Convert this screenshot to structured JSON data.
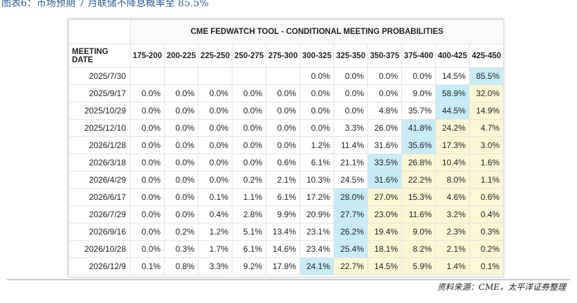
{
  "caption": "图表6：市场预期 7 月联储不降息概率至 85.5%",
  "source": "资料来源：CME，太平洋证券整理",
  "colors": {
    "highlight_max": "#c7ecf6",
    "highlight_above": "#fbf7d5"
  },
  "chart_data": {
    "type": "table",
    "title": "CME FEDWATCH TOOL - CONDITIONAL MEETING PROBABILITIES",
    "row_header": "MEETING DATE",
    "columns": [
      "175-200",
      "200-225",
      "225-250",
      "250-275",
      "275-300",
      "300-325",
      "325-350",
      "350-375",
      "375-400",
      "400-425",
      "425-450"
    ],
    "rows": [
      {
        "date": "2025/7/30",
        "values": [
          "",
          "",
          "",
          "",
          "",
          "0.0%",
          "0.0%",
          "0.0%",
          "0.0%",
          "14.5%",
          "85.5%"
        ]
      },
      {
        "date": "2025/9/17",
        "values": [
          "0.0%",
          "0.0%",
          "0.0%",
          "0.0%",
          "0.0%",
          "0.0%",
          "0.0%",
          "0.0%",
          "9.0%",
          "58.9%",
          "32.0%"
        ]
      },
      {
        "date": "2025/10/29",
        "values": [
          "0.0%",
          "0.0%",
          "0.0%",
          "0.0%",
          "0.0%",
          "0.0%",
          "0.0%",
          "4.8%",
          "35.7%",
          "44.5%",
          "14.9%"
        ]
      },
      {
        "date": "2025/12/10",
        "values": [
          "0.0%",
          "0.0%",
          "0.0%",
          "0.0%",
          "0.0%",
          "0.0%",
          "3.3%",
          "26.0%",
          "41.8%",
          "24.2%",
          "4.7%"
        ]
      },
      {
        "date": "2026/1/28",
        "values": [
          "0.0%",
          "0.0%",
          "0.0%",
          "0.0%",
          "0.0%",
          "1.2%",
          "11.4%",
          "31.6%",
          "35.6%",
          "17.3%",
          "3.0%"
        ]
      },
      {
        "date": "2026/3/18",
        "values": [
          "0.0%",
          "0.0%",
          "0.0%",
          "0.0%",
          "0.6%",
          "6.1%",
          "21.1%",
          "33.5%",
          "26.8%",
          "10.4%",
          "1.6%"
        ]
      },
      {
        "date": "2026/4/29",
        "values": [
          "0.0%",
          "0.0%",
          "0.0%",
          "0.2%",
          "2.1%",
          "10.3%",
          "24.5%",
          "31.6%",
          "22.2%",
          "8.0%",
          "1.1%"
        ]
      },
      {
        "date": "2026/6/17",
        "values": [
          "0.0%",
          "0.0%",
          "0.1%",
          "1.1%",
          "6.1%",
          "17.2%",
          "28.0%",
          "27.0%",
          "15.3%",
          "4.6%",
          "0.6%"
        ]
      },
      {
        "date": "2026/7/29",
        "values": [
          "0.0%",
          "0.0%",
          "0.4%",
          "2.8%",
          "9.9%",
          "20.9%",
          "27.7%",
          "23.0%",
          "11.6%",
          "3.2%",
          "0.4%"
        ]
      },
      {
        "date": "2026/9/16",
        "values": [
          "0.0%",
          "0.2%",
          "1.2%",
          "5.1%",
          "13.4%",
          "23.1%",
          "26.2%",
          "19.4%",
          "9.0%",
          "2.3%",
          "0.3%"
        ]
      },
      {
        "date": "2026/10/28",
        "values": [
          "0.0%",
          "0.3%",
          "1.7%",
          "6.1%",
          "14.6%",
          "23.4%",
          "25.4%",
          "18.1%",
          "8.2%",
          "2.1%",
          "0.2%"
        ]
      },
      {
        "date": "2026/12/9",
        "values": [
          "0.1%",
          "0.8%",
          "3.3%",
          "9.2%",
          "17.8%",
          "24.1%",
          "22.7%",
          "14.5%",
          "5.9%",
          "1.4%",
          "0.1%"
        ]
      }
    ]
  }
}
